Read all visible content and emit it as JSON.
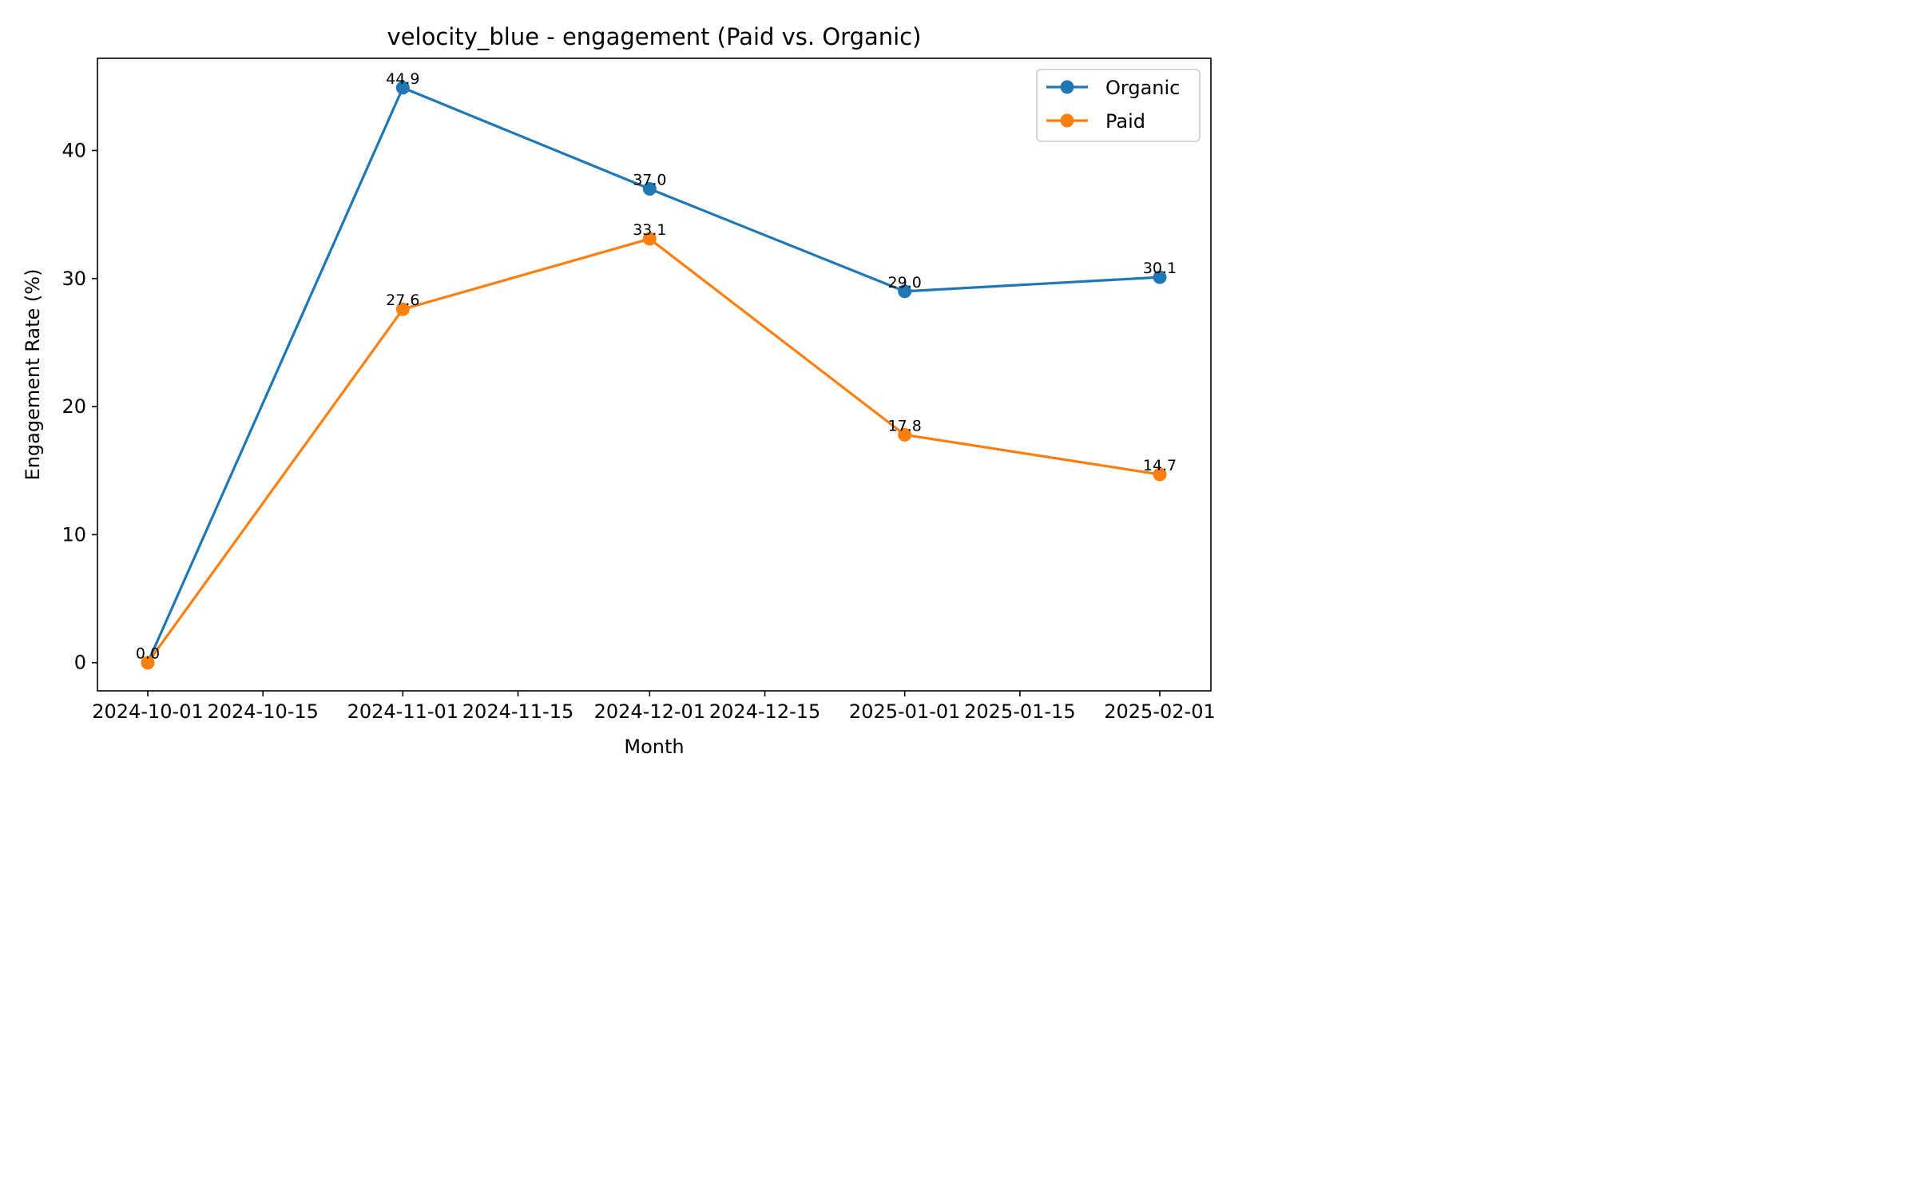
{
  "chart_data": {
    "type": "line",
    "title": "velocity_blue - engagement (Paid vs. Organic)",
    "xlabel": "Month",
    "ylabel": "Engagement Rate (%)",
    "x": [
      "2024-10-01",
      "2024-11-01",
      "2024-12-01",
      "2025-01-01",
      "2025-02-01"
    ],
    "x_ticks": [
      "2024-10-01",
      "2024-10-15",
      "2024-11-01",
      "2024-11-15",
      "2024-12-01",
      "2024-12-15",
      "2025-01-01",
      "2025-01-15",
      "2025-02-01"
    ],
    "y_ticks": [
      0,
      10,
      20,
      30,
      40
    ],
    "ylim": [
      -2.2,
      47.2
    ],
    "grid": false,
    "legend_position": "top-right",
    "series": [
      {
        "name": "Organic",
        "color": "#1f77b4",
        "values": [
          0.0,
          44.9,
          37.0,
          29.0,
          30.1
        ]
      },
      {
        "name": "Paid",
        "color": "#ff7f0e",
        "values": [
          0.0,
          27.6,
          33.1,
          17.8,
          14.7
        ]
      }
    ],
    "data_labels": [
      {
        "x": "2024-10-01",
        "y": 0.0,
        "text": "0.0"
      },
      {
        "x": "2024-11-01",
        "y": 44.9,
        "text": "44.9"
      },
      {
        "x": "2024-12-01",
        "y": 37.0,
        "text": "37.0"
      },
      {
        "x": "2025-01-01",
        "y": 29.0,
        "text": "29.0"
      },
      {
        "x": "2025-02-01",
        "y": 30.1,
        "text": "30.1"
      },
      {
        "x": "2024-11-01",
        "y": 27.6,
        "text": "27.6"
      },
      {
        "x": "2024-12-01",
        "y": 33.1,
        "text": "33.1"
      },
      {
        "x": "2025-01-01",
        "y": 17.8,
        "text": "17.8"
      },
      {
        "x": "2025-02-01",
        "y": 14.7,
        "text": "14.7"
      }
    ]
  }
}
